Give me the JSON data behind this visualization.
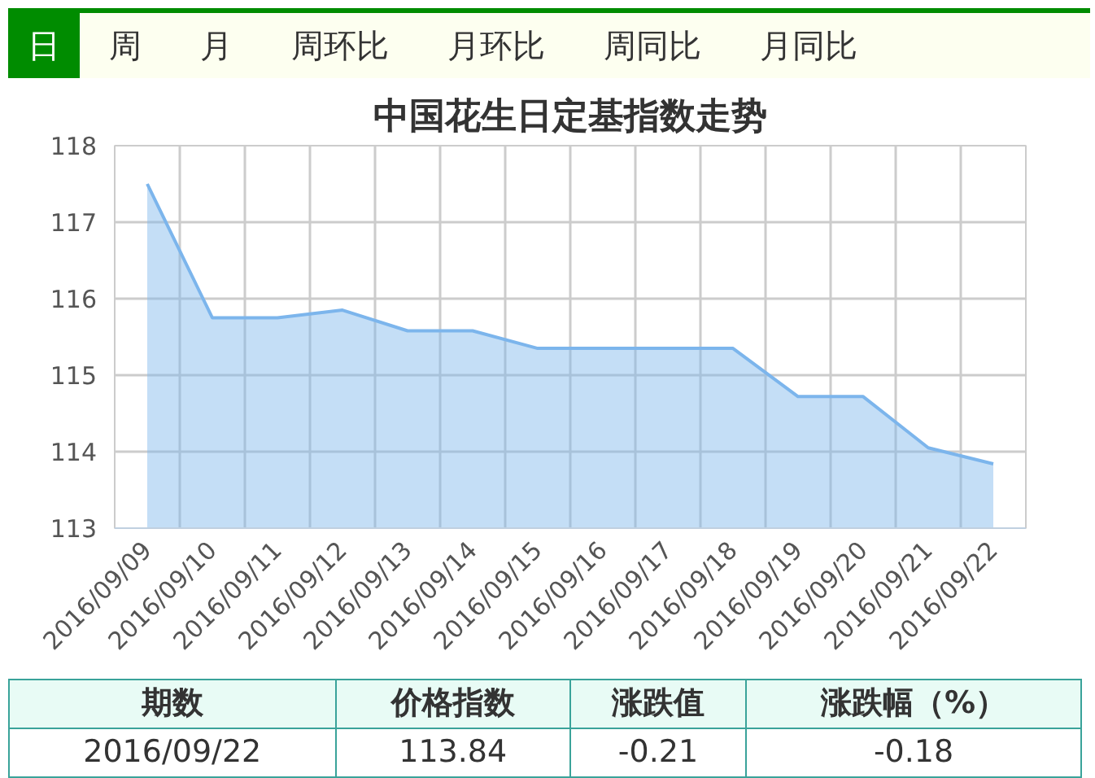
{
  "chart_data": {
    "type": "area",
    "title": "中国花生日定基指数走势",
    "categories": [
      "2016/09/09",
      "2016/09/10",
      "2016/09/11",
      "2016/09/12",
      "2016/09/13",
      "2016/09/14",
      "2016/09/15",
      "2016/09/16",
      "2016/09/17",
      "2016/09/18",
      "2016/09/19",
      "2016/09/20",
      "2016/09/21",
      "2016/09/22"
    ],
    "series": [
      {
        "color": "#7cb5ec",
        "values": [
          117.5,
          115.75,
          115.75,
          115.85,
          115.58,
          115.58,
          115.35,
          115.35,
          115.35,
          115.35,
          114.72,
          114.72,
          114.05,
          113.84
        ]
      }
    ],
    "ylim": [
      113,
      118
    ],
    "yticks": [
      113,
      114,
      115,
      116,
      117,
      118
    ],
    "grid": true,
    "annotations": [
      "日",
      "周",
      "月",
      "周环比",
      "月环比",
      "周同比",
      "月同比",
      "期数",
      "价格指数",
      "涨跌值",
      "涨跌幅（%）",
      "2016/09/22",
      "113.84",
      "-0.21",
      "-0.18"
    ]
  }
}
